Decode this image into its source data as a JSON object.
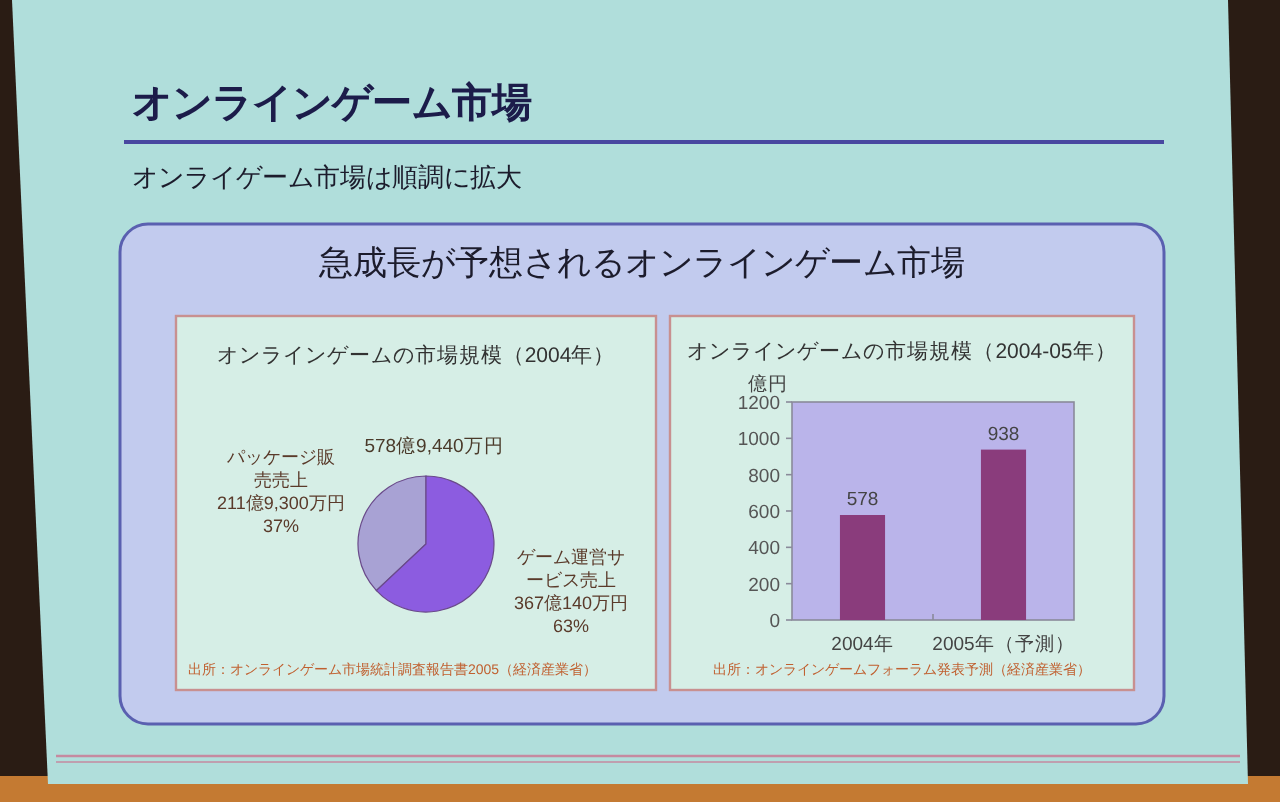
{
  "chart_data": [
    {
      "type": "other",
      "title": "オンラインゲーム市場",
      "subtitle": "オンライゲーム市場は順調に拡大",
      "annotations": [
        "急成長が予想されるオンラインゲーム市場"
      ]
    },
    {
      "type": "pie",
      "title": "オンラインゲームの市場規模（2004年）",
      "categories": [
        "パッケージ販売売上",
        "ゲーム運営サービス売上"
      ],
      "values": [
        37,
        63
      ],
      "colors": [
        "#a8a2d4",
        "#8c5ce0"
      ],
      "value_labels": [
        "211億9,300万円 37%",
        "367億140万円 63%"
      ],
      "annotations": [
        "578億9,440万円",
        "出所：オンラインゲーム市場統計調査報告書2005（経済産業省）"
      ]
    },
    {
      "type": "bar",
      "title": "オンラインゲームの市場規模（2004-05年）",
      "ylabel": "億円",
      "categories": [
        "2004年",
        "2005年（予測）"
      ],
      "values": [
        578,
        938
      ],
      "color": "#8a3c7c",
      "ylim": [
        0,
        1200
      ],
      "yticks": [
        0,
        200,
        400,
        600,
        800,
        1000,
        1200
      ],
      "data_labels": true,
      "annotations": [
        "出所：オンラインゲームフォーラム発表予測（経済産業省）"
      ]
    }
  ]
}
